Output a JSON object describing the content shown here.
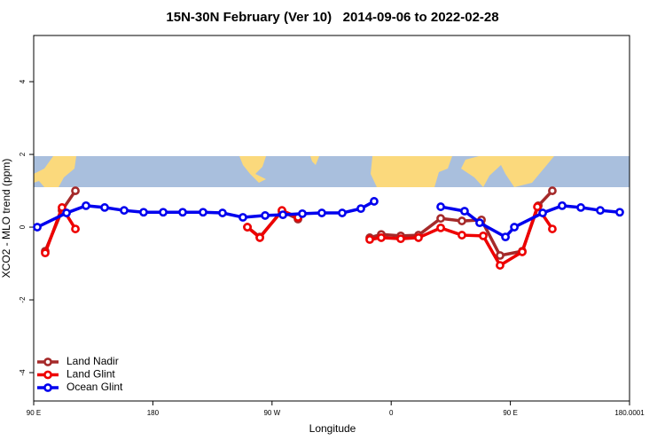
{
  "chart_data": {
    "type": "line",
    "title": "15N-30N February (Ver 10)   2014-09-06 to 2022-02-28",
    "x_label": "Longitude",
    "y_label": "XCO2 - MLO trend (ppm)",
    "xlim": [
      90,
      540
    ],
    "ylim": [
      -4.78,
      5.27
    ],
    "xticks": [
      {
        "value": 90,
        "label": "90 E"
      },
      180,
      {
        "value": 270,
        "label": "90 W"
      },
      {
        "value": 360,
        "label": "0"
      },
      {
        "value": 450,
        "label": "90 E"
      },
      180.0001
    ],
    "yticks": [
      -4,
      -2,
      0,
      2,
      4
    ],
    "legend": "bottom-left",
    "series": [
      {
        "name": "Land Nadir",
        "color": "#a52a2a",
        "x": [
          98.7,
          111.4,
          121.5,
          null,
          251.4,
          260.8,
          277.5,
          289.6,
          null,
          343.8,
          352.5,
          367.2,
          380.6,
          397.4,
          413.4,
          428.2,
          442.2,
          459,
          471.1,
          481.7
        ],
        "values": [
          -0.66,
          0.46,
          1.0,
          null,
          0,
          -0.27,
          0.44,
          0.22,
          null,
          -0.29,
          -0.2,
          -0.24,
          -0.22,
          0.24,
          0.17,
          0.2,
          -0.78,
          -0.66,
          0.59,
          1.0
        ]
      },
      {
        "name": "Land Glint",
        "color": "#ee0000",
        "x": [
          98.7,
          111.4,
          121.5,
          null,
          251.4,
          260.8,
          277.5,
          289.6,
          null,
          343.8,
          352.5,
          367.2,
          380.6,
          397.4,
          413.4,
          429.5,
          442.2,
          459,
          470.4,
          481.7
        ],
        "values": [
          -0.71,
          0.54,
          -0.05,
          null,
          0,
          -0.29,
          0.46,
          0.27,
          null,
          -0.34,
          -0.29,
          -0.32,
          -0.29,
          -0.02,
          -0.22,
          -0.24,
          -1.05,
          -0.68,
          0.56,
          -0.05
        ]
      },
      {
        "name": "Ocean Glint",
        "color": "#0000ee",
        "x": [
          92.7,
          114.8,
          129.5,
          143.6,
          158.3,
          173,
          187.8,
          202.5,
          217.9,
          232.6,
          248,
          264.8,
          278.2,
          292.9,
          307.6,
          323,
          337.1,
          347.1,
          null,
          397.4,
          415.4,
          426.8,
          446.3,
          453,
          474.4,
          489.1,
          503.2,
          517.9,
          532.6
        ],
        "values": [
          0,
          0.39,
          0.59,
          0.54,
          0.46,
          0.41,
          0.41,
          0.41,
          0.41,
          0.39,
          0.27,
          0.32,
          0.34,
          0.37,
          0.39,
          0.39,
          0.51,
          0.71,
          null,
          0.56,
          0.44,
          0.12,
          -0.27,
          0,
          0.39,
          0.59,
          0.54,
          0.46,
          0.41
        ]
      }
    ]
  }
}
